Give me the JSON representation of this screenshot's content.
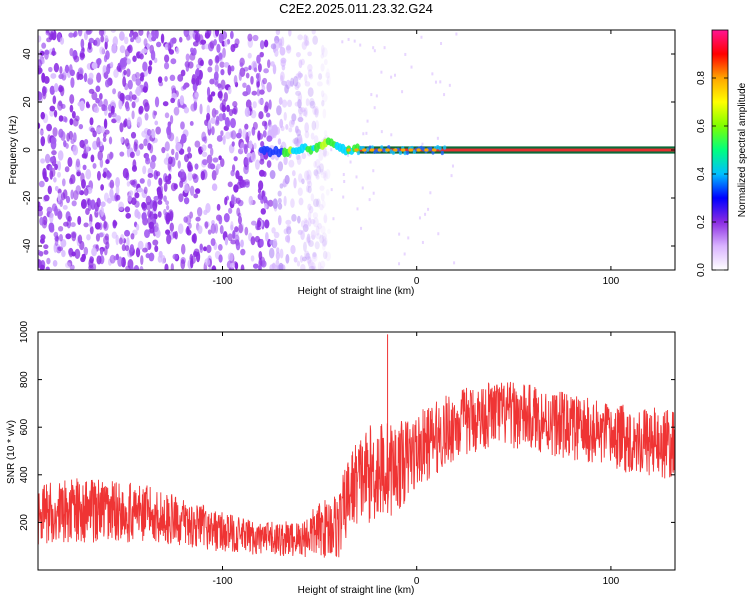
{
  "chart_data": [
    {
      "type": "heatmap",
      "title": "C2E2.2025.011.23.32.G24",
      "xlabel": "Height of straight line (km)",
      "ylabel": "Frequency (Hz)",
      "xlim": [
        -195,
        133
      ],
      "ylim": [
        -50,
        50
      ],
      "xticks": [
        -100,
        0,
        100
      ],
      "yticks": [
        -40,
        -20,
        0,
        20,
        40
      ],
      "colorbar": {
        "label": "Normalized spectral amplitude",
        "range": [
          0,
          1
        ],
        "ticks": [
          0.0,
          0.2,
          0.4,
          0.6,
          0.8
        ],
        "colors": [
          "#ffffff",
          "#d9b3ff",
          "#8a2be2",
          "#0000ff",
          "#00bfff",
          "#00ff7f",
          "#7fff00",
          "#ffff00",
          "#ffa500",
          "#ff0000",
          "#ff1493"
        ]
      },
      "noise_region_x": [
        -195,
        -45
      ],
      "signal_track": {
        "x": [
          -80,
          -65,
          -60,
          -55,
          -50,
          -45,
          -40,
          -35,
          -30,
          -20,
          -10,
          0,
          10,
          20,
          133
        ],
        "y": [
          0,
          -1,
          1,
          0,
          2,
          3,
          1,
          0,
          0,
          0,
          0,
          0,
          0,
          0,
          0
        ]
      }
    },
    {
      "type": "line",
      "xlabel": "Height of straight line (km)",
      "ylabel": "SNR (10 * v/v)",
      "xlim": [
        -195,
        133
      ],
      "ylim": [
        0,
        1000
      ],
      "xticks": [
        -100,
        0,
        100
      ],
      "yticks": [
        200,
        400,
        600,
        800,
        1000
      ],
      "color": "#ef3434",
      "series": [
        {
          "x": [
            -195,
            -180,
            -160,
            -140,
            -120,
            -100,
            -80,
            -60,
            -50,
            -40,
            -35,
            -30,
            -20,
            -10,
            0,
            20,
            40,
            60,
            80,
            100,
            120,
            133
          ],
          "y": [
            230,
            250,
            250,
            240,
            200,
            160,
            130,
            130,
            170,
            190,
            320,
            380,
            420,
            430,
            500,
            610,
            660,
            640,
            600,
            560,
            540,
            520
          ]
        }
      ],
      "spread": {
        "x": [
          -195,
          -160,
          -120,
          -80,
          -60,
          -40,
          -20,
          0,
          40,
          100,
          133
        ],
        "y": [
          130,
          140,
          100,
          70,
          80,
          150,
          220,
          160,
          140,
          140,
          150
        ]
      }
    }
  ]
}
